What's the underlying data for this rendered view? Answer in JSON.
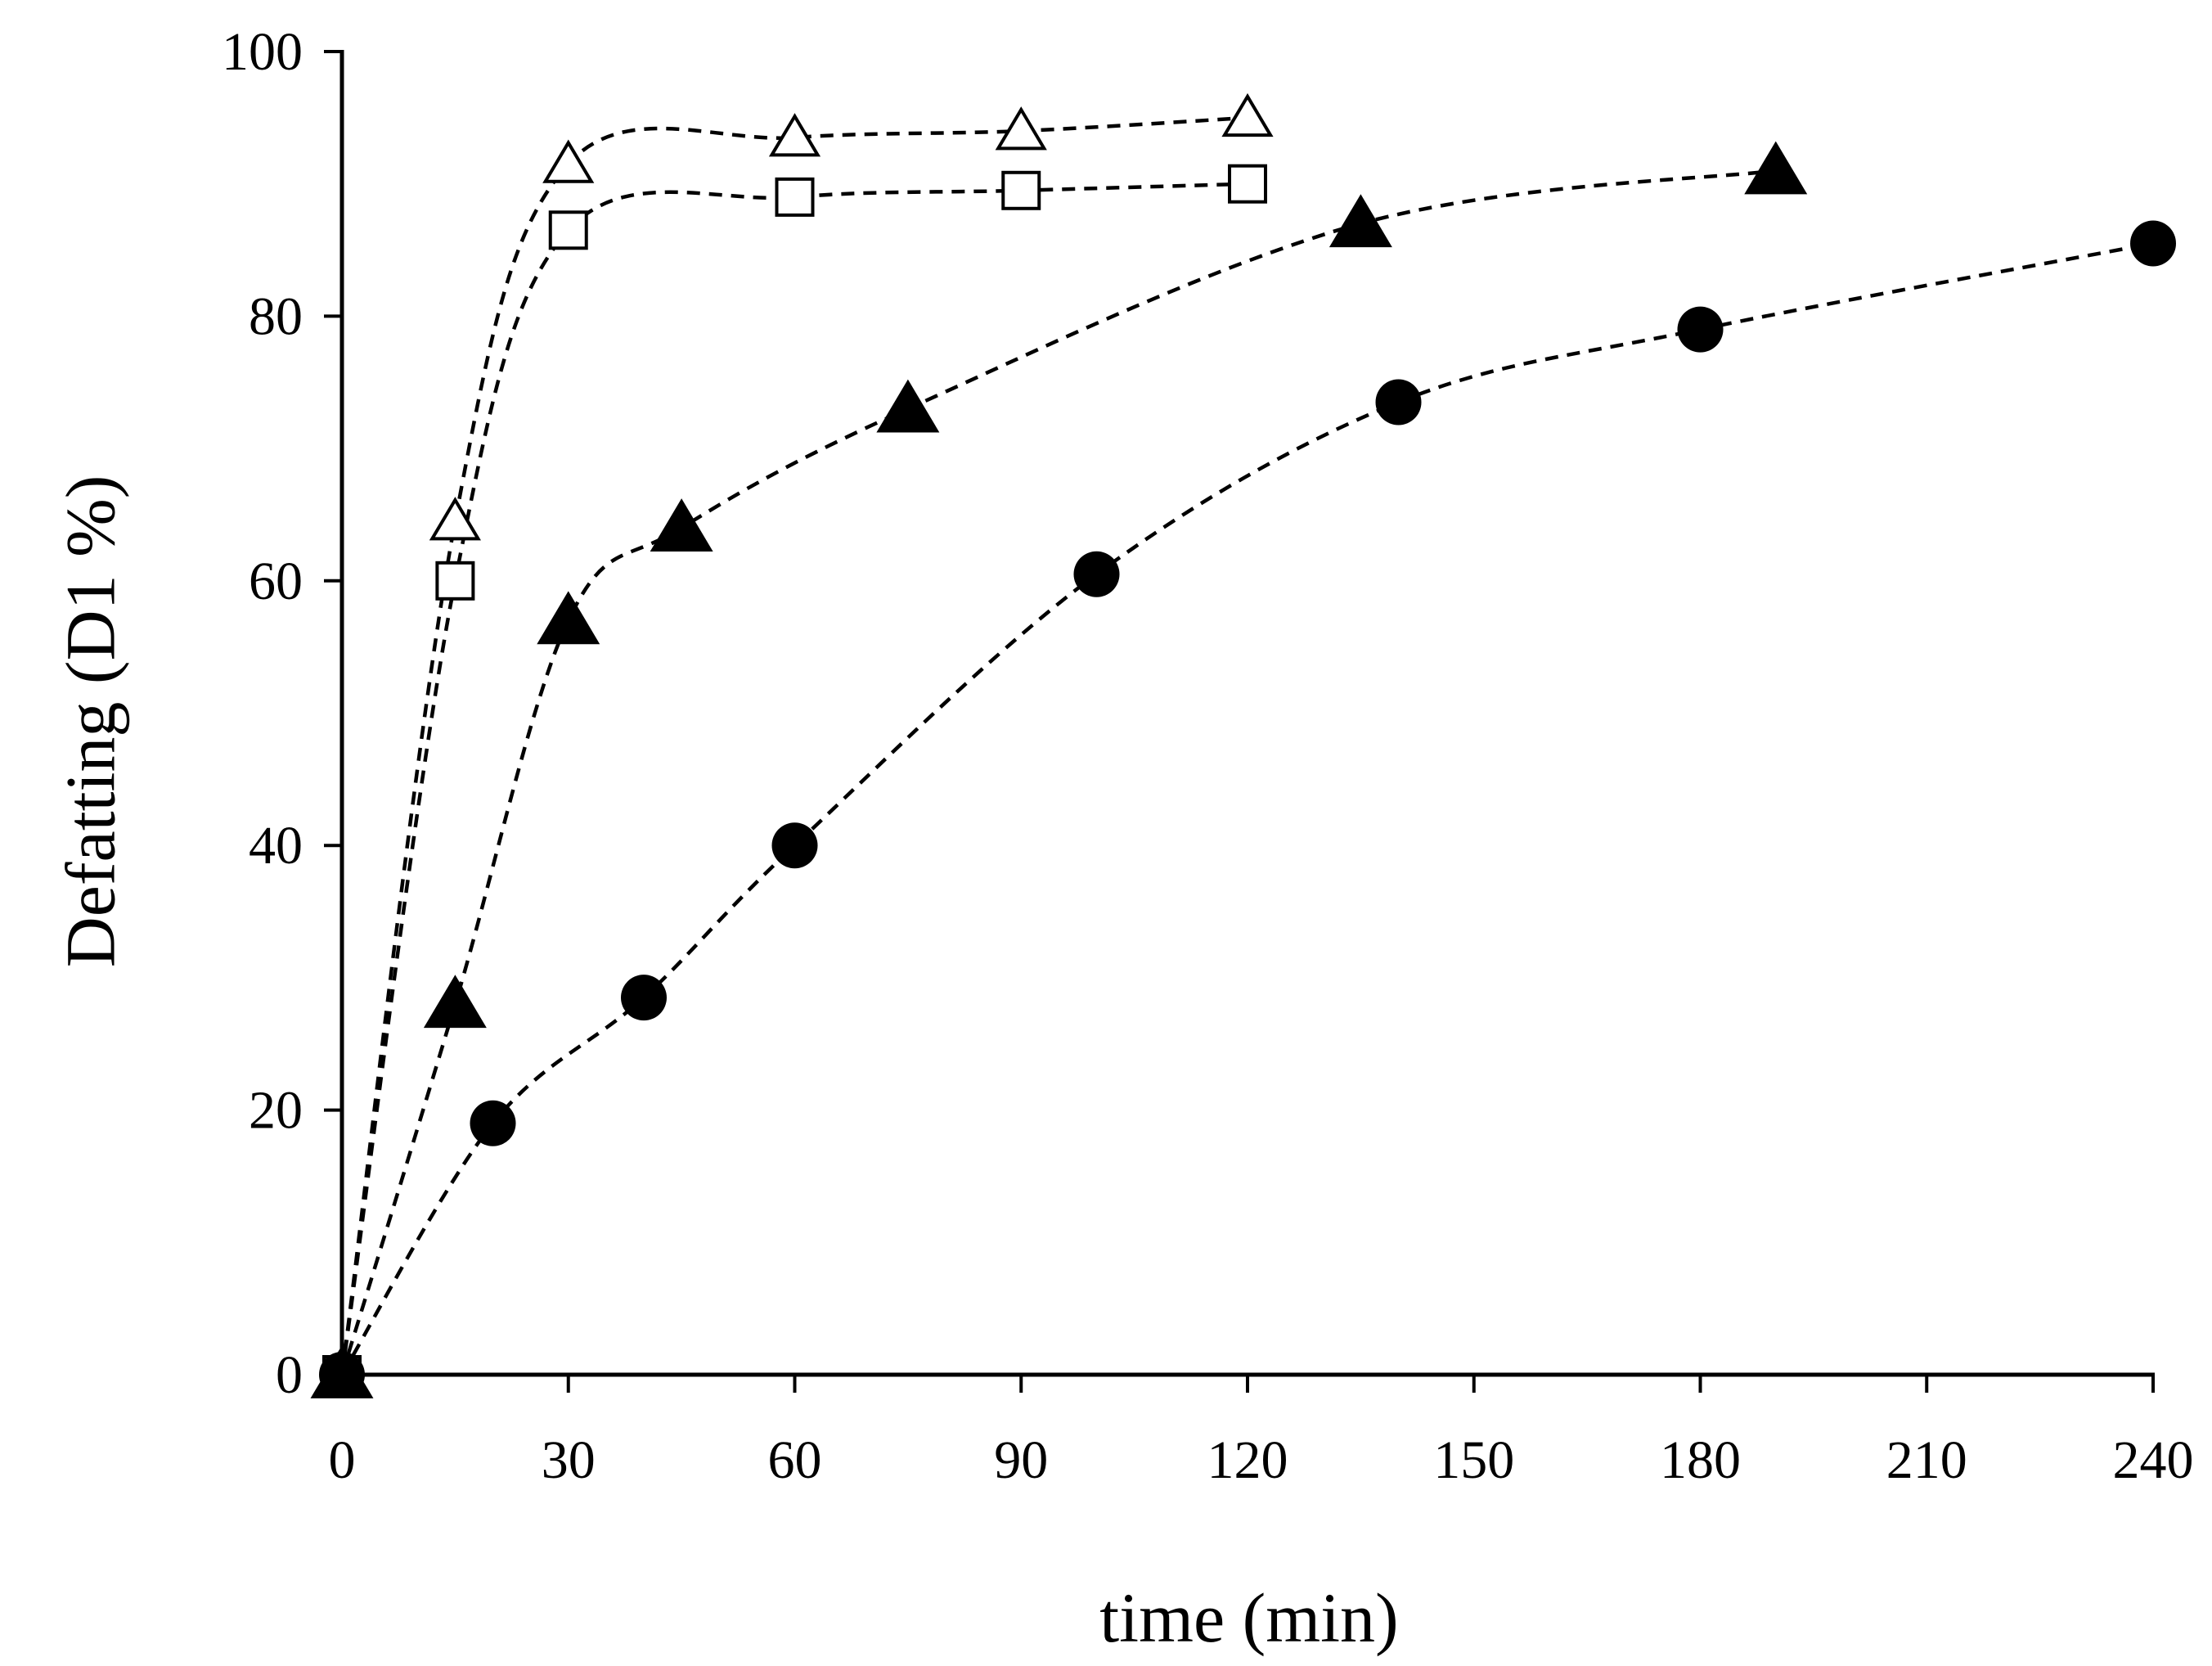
{
  "chart_data": {
    "type": "scatter",
    "title": "",
    "xlabel": "time (min)",
    "ylabel": "Defatting (D1 %)",
    "xlim": [
      0,
      240
    ],
    "ylim": [
      0,
      100
    ],
    "xticks": [
      0,
      30,
      60,
      90,
      120,
      150,
      180,
      210,
      240
    ],
    "yticks": [
      0,
      20,
      40,
      60,
      80,
      100
    ],
    "grid": false,
    "legend": "none",
    "series": [
      {
        "name": "open-triangle",
        "marker": "triangle",
        "filled": false,
        "line": "dashed",
        "x": [
          0,
          15,
          30,
          60,
          90,
          120
        ],
        "y": [
          0,
          64.5,
          91.5,
          93.5,
          94,
          95
        ]
      },
      {
        "name": "open-square",
        "marker": "square",
        "filled": false,
        "line": "dashed",
        "x": [
          0,
          15,
          30,
          60,
          90,
          120
        ],
        "y": [
          0,
          60,
          86.5,
          89,
          89.5,
          90
        ]
      },
      {
        "name": "filled-triangle",
        "marker": "triangle",
        "filled": true,
        "line": "dashed",
        "x": [
          0,
          15,
          30,
          45,
          75,
          135,
          190
        ],
        "y": [
          0,
          28,
          57,
          64,
          73,
          87,
          91
        ]
      },
      {
        "name": "filled-circle",
        "marker": "circle",
        "filled": true,
        "line": "dashed",
        "x": [
          0,
          20,
          40,
          60,
          100,
          140,
          180,
          240
        ],
        "y": [
          0,
          19,
          28.5,
          40,
          60.5,
          73.5,
          79,
          85.5
        ]
      }
    ]
  }
}
